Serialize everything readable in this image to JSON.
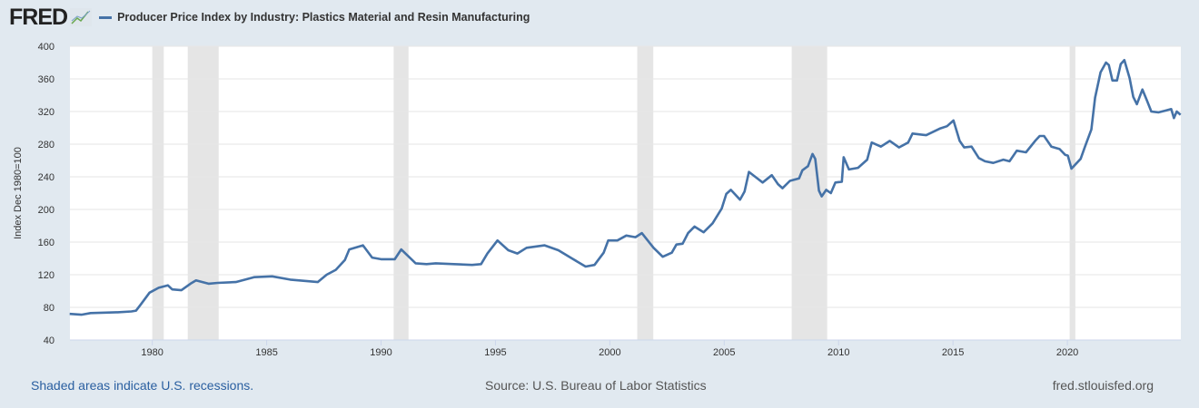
{
  "header": {
    "logo": "FRED",
    "series_title": "Producer Price Index by Industry: Plastics Material and Resin Manufacturing"
  },
  "footer": {
    "recession_note": "Shaded areas indicate U.S. recessions.",
    "source": "Source: U.S. Bureau of Labor Statistics",
    "site": "fred.stlouisfed.org"
  },
  "colors": {
    "line": "#4572a7",
    "recession": "#e5e5e5",
    "grid": "#e6e6e6",
    "background": "#e1e9f0"
  },
  "chart_data": {
    "type": "line",
    "title": "Producer Price Index by Industry: Plastics Material and Resin Manufacturing",
    "xlabel": "",
    "ylabel": "Index Dec 1980=100",
    "xlim": [
      1976.4,
      2024.96
    ],
    "ylim": [
      40,
      400
    ],
    "yticks": [
      40,
      80,
      120,
      160,
      200,
      240,
      280,
      320,
      360,
      400
    ],
    "xticks": [
      1980,
      1985,
      1990,
      1995,
      2000,
      2005,
      2010,
      2015,
      2020
    ],
    "grid": true,
    "legend": "top-left",
    "recessions": [
      [
        1980.0,
        1980.5
      ],
      [
        1981.55,
        1982.9
      ],
      [
        1990.55,
        1991.2
      ],
      [
        2001.2,
        2001.9
      ],
      [
        2007.95,
        2009.5
      ],
      [
        2020.1,
        2020.35
      ]
    ],
    "series": [
      {
        "name": "Producer Price Index by Industry: Plastics Material and Resin Manufacturing",
        "x": [
          1976.39,
          1976.9,
          1977.3,
          1978.49,
          1979.09,
          1979.29,
          1979.48,
          1979.88,
          1980.28,
          1980.68,
          1980.87,
          1981.27,
          1981.67,
          1981.91,
          1982.46,
          1982.86,
          1983.65,
          1984.45,
          1985.24,
          1986.03,
          1986.83,
          1987.23,
          1987.62,
          1988.02,
          1988.42,
          1988.61,
          1989.21,
          1989.61,
          1990.0,
          1990.6,
          1990.88,
          1991.51,
          1991.99,
          1992.39,
          1993.18,
          1993.98,
          1994.37,
          1994.65,
          1995.09,
          1995.56,
          1995.96,
          1996.36,
          1997.15,
          1997.75,
          1998.34,
          1998.94,
          1999.33,
          1999.73,
          1999.93,
          2000.33,
          2000.72,
          2001.12,
          2001.4,
          2001.91,
          2002.31,
          2002.71,
          2002.91,
          2003.18,
          2003.42,
          2003.7,
          2004.1,
          2004.49,
          2004.89,
          2005.09,
          2005.29,
          2005.69,
          2005.89,
          2006.08,
          2006.4,
          2006.68,
          2007.08,
          2007.35,
          2007.55,
          2007.87,
          2008.27,
          2008.42,
          2008.66,
          2008.86,
          2008.98,
          2009.14,
          2009.26,
          2009.46,
          2009.66,
          2009.86,
          2010.14,
          2010.22,
          2010.45,
          2010.85,
          2011.25,
          2011.45,
          2011.85,
          2012.24,
          2012.64,
          2013.04,
          2013.23,
          2013.83,
          2014.42,
          2014.74,
          2015.02,
          2015.29,
          2015.49,
          2015.81,
          2016.13,
          2016.4,
          2016.76,
          2017.2,
          2017.47,
          2017.79,
          2018.19,
          2018.59,
          2018.79,
          2018.98,
          2019.3,
          2019.66,
          2019.9,
          2020.02,
          2020.18,
          2020.58,
          2020.77,
          2021.05,
          2021.21,
          2021.45,
          2021.69,
          2021.81,
          2021.97,
          2022.17,
          2022.33,
          2022.49,
          2022.72,
          2022.88,
          2023.04,
          2023.28,
          2023.47,
          2023.67,
          2023.99,
          2024.27,
          2024.54,
          2024.66,
          2024.78,
          2024.95
        ],
        "y": [
          72,
          71,
          73,
          74,
          75,
          76,
          83,
          98,
          104,
          107,
          102,
          101,
          109,
          113,
          109,
          110,
          111,
          117,
          118,
          114,
          112,
          111,
          120,
          126,
          138,
          151,
          156,
          141,
          139,
          139,
          151,
          134,
          133,
          134,
          133,
          132,
          133,
          146,
          162,
          150,
          146,
          153,
          156,
          150,
          140,
          130,
          132,
          147,
          162,
          162,
          168,
          166,
          171,
          153,
          142,
          147,
          157,
          158,
          171,
          179,
          172,
          183,
          201,
          219,
          224,
          212,
          222,
          246,
          239,
          233,
          242,
          231,
          226,
          235,
          238,
          248,
          253,
          268,
          262,
          223,
          216,
          224,
          220,
          233,
          234,
          264,
          249,
          251,
          261,
          282,
          277,
          284,
          276,
          282,
          293,
          291,
          299,
          302,
          309,
          284,
          276,
          277,
          263,
          259,
          257,
          261,
          259,
          272,
          270,
          284,
          290,
          290,
          277,
          274,
          267,
          266,
          250,
          262,
          277,
          298,
          337,
          368,
          380,
          377,
          358,
          358,
          378,
          383,
          361,
          338,
          329,
          347,
          334,
          320,
          319,
          321,
          323,
          312,
          320,
          316
        ]
      }
    ]
  }
}
